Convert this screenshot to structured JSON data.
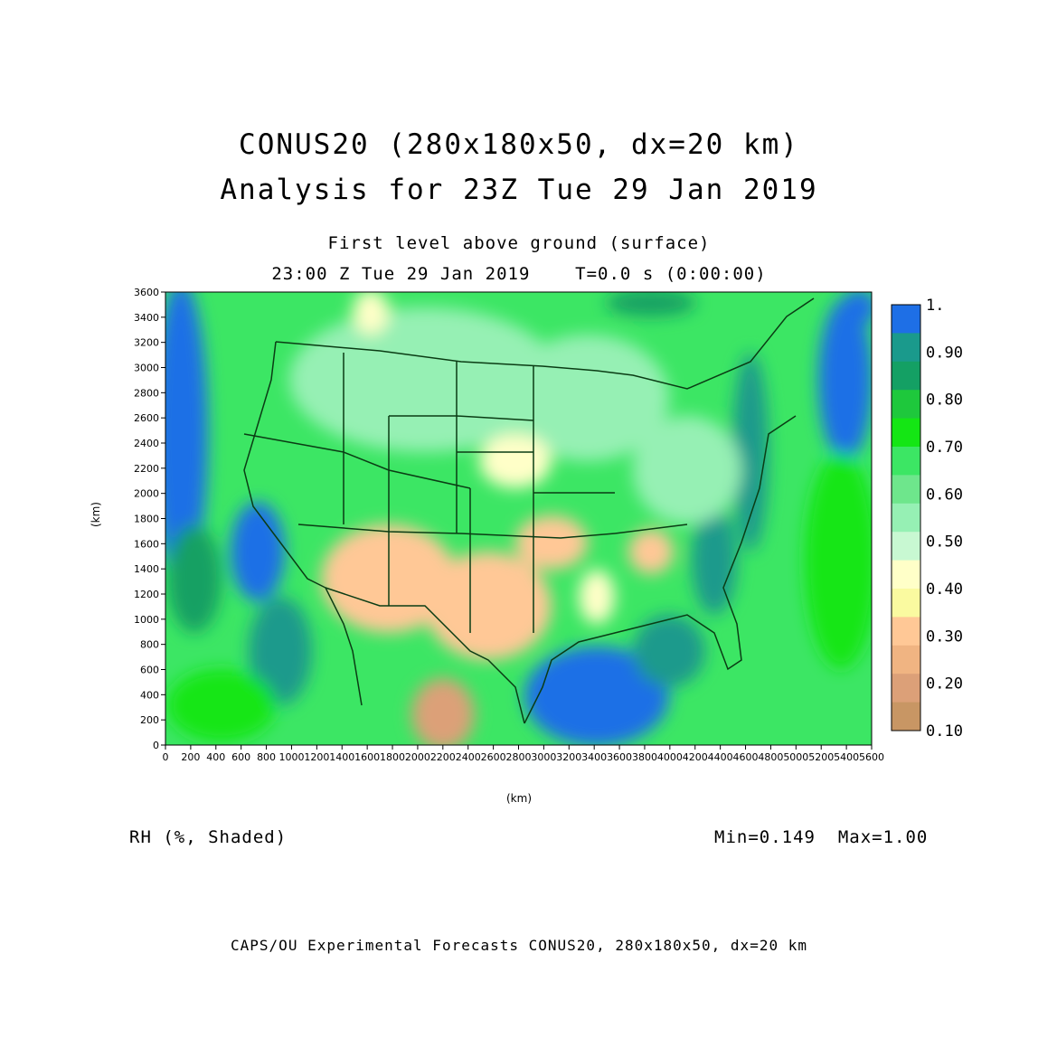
{
  "title_line1": "CONUS20 (280x180x50, dx=20 km)",
  "title_line2": "Analysis for 23Z Tue 29 Jan 2019",
  "subtitle_level": "First level above ground (surface)",
  "subtitle_time": "23:00 Z Tue 29 Jan 2019    T=0.0 s (0:00:00)",
  "variable_label": "RH (%, Shaded)",
  "min_max": "Min=0.149  Max=1.00",
  "footer": "CAPS/OU Experimental Forecasts  CONUS20, 280x180x50, dx=20 km",
  "x_axis_unit": "(km)",
  "y_axis_unit": "(km)",
  "x_ticks": [
    "0",
    "200",
    "400",
    "600",
    "800",
    "1000",
    "1200",
    "1400",
    "1600",
    "1800",
    "2000",
    "2200",
    "2400",
    "2600",
    "2800",
    "3000",
    "3200",
    "3400",
    "3600",
    "3800",
    "4000",
    "4200",
    "4400",
    "4600",
    "4800",
    "5000",
    "5200",
    "5400",
    "5600"
  ],
  "y_ticks": [
    "0",
    "200",
    "400",
    "600",
    "800",
    "1000",
    "1200",
    "1400",
    "1600",
    "1800",
    "2000",
    "2200",
    "2400",
    "2600",
    "2800",
    "3000",
    "3200",
    "3400",
    "3600"
  ],
  "colorbar": {
    "labels": [
      "1.",
      "0.90",
      "0.80",
      "0.70",
      "0.60",
      "0.50",
      "0.40",
      "0.30",
      "0.20",
      "0.10"
    ],
    "colors": [
      "#1e6fe6",
      "#1a9a8c",
      "#14a064",
      "#1ec83c",
      "#14e614",
      "#3ce664",
      "#6ee68c",
      "#96f0b4",
      "#c8f8d2",
      "#ffffc8",
      "#fafaa0",
      "#ffc896",
      "#f0b482",
      "#dca078",
      "#c89664"
    ]
  },
  "chart_data": {
    "type": "heatmap",
    "x_range_km": [
      0,
      5600
    ],
    "y_range_km": [
      0,
      3600
    ],
    "field": "RH",
    "min": 0.149,
    "max": 1.0
  }
}
